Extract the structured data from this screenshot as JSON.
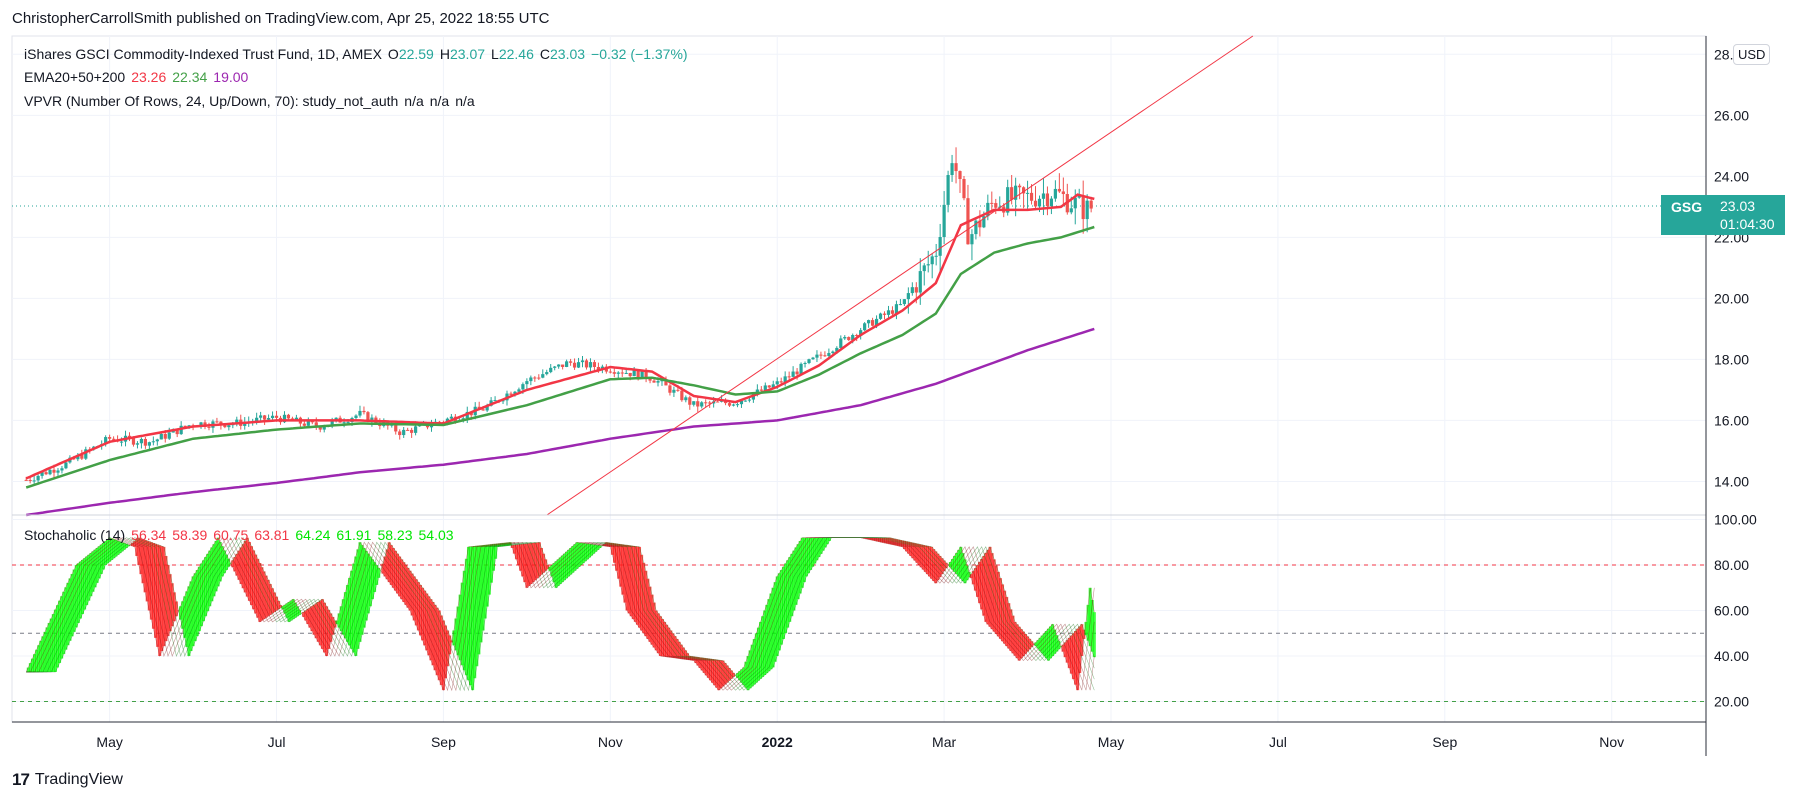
{
  "header": {
    "publisher_line": "ChristopherCarrollSmith published on TradingView.com, Apr 25, 2022 18:55 UTC",
    "instrument": "iShares GSCI Commodity-Indexed Trust Fund, 1D, AMEX",
    "open_label": "O",
    "open": "22.59",
    "high_label": "H",
    "high": "23.07",
    "low_label": "L",
    "low": "22.46",
    "close_label": "C",
    "close": "23.03",
    "change": "−0.32 (−1.37%)"
  },
  "ema_legend": {
    "label": "EMA20+50+200",
    "ema20": "23.26",
    "ema50": "22.34",
    "ema200": "19.00"
  },
  "vpvr_legend": {
    "label": "VPVR (Number Of Rows, 24, Up/Down, 70): study_not_auth",
    "v1": "n/a",
    "v2": "n/a",
    "v3": "n/a"
  },
  "stoch_legend": {
    "label": "Stochaholic (14)",
    "values": [
      "56.34",
      "58.39",
      "60.75",
      "63.81",
      "64.24",
      "61.91",
      "58.23",
      "54.03"
    ],
    "value_colors": [
      "#f23645",
      "#f23645",
      "#f23645",
      "#f23645",
      "#00e600",
      "#00e600",
      "#00e600",
      "#00e600"
    ]
  },
  "price_tag": {
    "symbol": "GSG",
    "price": "23.03",
    "countdown": "01:04:30"
  },
  "currency": "USD",
  "footer": {
    "logo": "17",
    "brand": "TradingView"
  },
  "colors": {
    "up": "#26a69a",
    "down": "#ef5350",
    "ema20": "#f23645",
    "ema50": "#43a047",
    "ema200": "#9c27b0",
    "trend": "#f23645",
    "stoch_up": "#00ff00",
    "stoch_down": "#ff1a1a"
  },
  "chart_data": [
    {
      "type": "candlestick",
      "title": "iShares GSCI Commodity-Indexed Trust Fund, 1D, AMEX",
      "ylim": [
        12.9,
        28.6
      ],
      "y_ticks": [
        "28.00",
        "26.00",
        "24.00",
        "22.00",
        "20.00",
        "18.00",
        "16.00",
        "14.00"
      ],
      "y_tick_values": [
        28,
        26,
        24,
        22,
        20,
        18,
        16,
        14
      ],
      "x_month_labels": [
        "May",
        "Jul",
        "Sep",
        "Nov",
        "2022",
        "Mar",
        "May",
        "Jul",
        "Sep",
        "Nov"
      ],
      "x_month_index": [
        1,
        3,
        5,
        7,
        9,
        11,
        13,
        15,
        17,
        19
      ],
      "x_range_months": [
        -0.17,
        20.13
      ],
      "last_close": 23.03,
      "ohlc_monthly_approx": [
        {
          "t": 0.0,
          "c": 14.05
        },
        {
          "t": 0.5,
          "c": 14.6
        },
        {
          "t": 1.0,
          "c": 15.4
        },
        {
          "t": 1.5,
          "c": 15.3
        },
        {
          "t": 2.0,
          "c": 15.9
        },
        {
          "t": 2.5,
          "c": 15.9
        },
        {
          "t": 3.0,
          "c": 16.1
        },
        {
          "t": 3.5,
          "c": 15.8
        },
        {
          "t": 4.0,
          "c": 16.2
        },
        {
          "t": 4.5,
          "c": 15.6
        },
        {
          "t": 5.0,
          "c": 16.0
        },
        {
          "t": 5.5,
          "c": 16.4
        },
        {
          "t": 6.0,
          "c": 17.3
        },
        {
          "t": 6.5,
          "c": 17.9
        },
        {
          "t": 7.0,
          "c": 17.7
        },
        {
          "t": 7.5,
          "c": 17.4
        },
        {
          "t": 8.0,
          "c": 16.5
        },
        {
          "t": 8.5,
          "c": 16.6
        },
        {
          "t": 9.0,
          "c": 17.2
        },
        {
          "t": 9.5,
          "c": 18.1
        },
        {
          "t": 10.0,
          "c": 19.0
        },
        {
          "t": 10.5,
          "c": 19.8
        },
        {
          "t": 10.9,
          "c": 21.5
        },
        {
          "t": 11.1,
          "c": 24.8
        },
        {
          "t": 11.3,
          "c": 22.0
        },
        {
          "t": 11.6,
          "c": 23.2
        },
        {
          "t": 12.0,
          "c": 23.3
        },
        {
          "t": 12.3,
          "c": 23.5
        },
        {
          "t": 12.7,
          "c": 22.9
        },
        {
          "t": 12.8,
          "c": 23.03
        }
      ],
      "series": [
        {
          "name": "EMA20",
          "values_at_t": [
            [
              0,
              14.1
            ],
            [
              1,
              15.3
            ],
            [
              2,
              15.8
            ],
            [
              3,
              16.0
            ],
            [
              4,
              16.0
            ],
            [
              5,
              15.9
            ],
            [
              6,
              17.0
            ],
            [
              7,
              17.75
            ],
            [
              7.5,
              17.6
            ],
            [
              8,
              16.8
            ],
            [
              8.5,
              16.6
            ],
            [
              9,
              17.1
            ],
            [
              9.5,
              17.8
            ],
            [
              10,
              18.8
            ],
            [
              10.5,
              19.6
            ],
            [
              10.9,
              20.5
            ],
            [
              11.2,
              22.4
            ],
            [
              11.6,
              22.9
            ],
            [
              12.0,
              22.9
            ],
            [
              12.4,
              23.0
            ],
            [
              12.6,
              23.4
            ],
            [
              12.8,
              23.26
            ]
          ]
        },
        {
          "name": "EMA50",
          "values_at_t": [
            [
              0,
              13.8
            ],
            [
              1,
              14.7
            ],
            [
              2,
              15.4
            ],
            [
              3,
              15.7
            ],
            [
              4,
              15.9
            ],
            [
              5,
              15.85
            ],
            [
              6,
              16.5
            ],
            [
              7,
              17.35
            ],
            [
              7.5,
              17.4
            ],
            [
              8,
              17.15
            ],
            [
              8.5,
              16.85
            ],
            [
              9,
              16.95
            ],
            [
              9.5,
              17.5
            ],
            [
              10,
              18.2
            ],
            [
              10.5,
              18.8
            ],
            [
              10.9,
              19.5
            ],
            [
              11.2,
              20.8
            ],
            [
              11.6,
              21.5
            ],
            [
              12.0,
              21.8
            ],
            [
              12.4,
              22.0
            ],
            [
              12.8,
              22.34
            ]
          ]
        },
        {
          "name": "EMA200",
          "values_at_t": [
            [
              0,
              12.9
            ],
            [
              1,
              13.3
            ],
            [
              2,
              13.65
            ],
            [
              3,
              13.95
            ],
            [
              4,
              14.3
            ],
            [
              5,
              14.55
            ],
            [
              6,
              14.9
            ],
            [
              7,
              15.4
            ],
            [
              8,
              15.8
            ],
            [
              9,
              16.0
            ],
            [
              10,
              16.5
            ],
            [
              10.9,
              17.2
            ],
            [
              11.3,
              17.6
            ],
            [
              12,
              18.3
            ],
            [
              12.8,
              19.0
            ]
          ]
        },
        {
          "name": "Trend line",
          "values_at_t": [
            [
              6.24,
              12.9
            ],
            [
              14.7,
              28.6
            ]
          ]
        }
      ]
    },
    {
      "type": "line",
      "title": "Stochaholic (14)",
      "ylim": [
        11,
        102
      ],
      "y_ticks": [
        "100.00",
        "80.00",
        "60.00",
        "40.00",
        "20.00"
      ],
      "y_tick_values": [
        100,
        80,
        60,
        40,
        20
      ],
      "hlines": [
        80,
        50,
        20
      ],
      "series": [
        {
          "name": "Stochastic (fast)",
          "values_at_t": [
            [
              0,
              33
            ],
            [
              0.6,
              80
            ],
            [
              1,
              92
            ],
            [
              1.3,
              88
            ],
            [
              1.6,
              40
            ],
            [
              2.0,
              75
            ],
            [
              2.3,
              92
            ],
            [
              2.8,
              55
            ],
            [
              3.2,
              65
            ],
            [
              3.6,
              40
            ],
            [
              4.0,
              90
            ],
            [
              4.6,
              60
            ],
            [
              5.0,
              25
            ],
            [
              5.3,
              88
            ],
            [
              5.8,
              90
            ],
            [
              6.0,
              70
            ],
            [
              6.6,
              90
            ],
            [
              7.0,
              88
            ],
            [
              7.2,
              60
            ],
            [
              7.6,
              40
            ],
            [
              8.0,
              38
            ],
            [
              8.3,
              25
            ],
            [
              8.6,
              35
            ],
            [
              9.0,
              75
            ],
            [
              9.3,
              92
            ],
            [
              10.0,
              92
            ],
            [
              10.5,
              88
            ],
            [
              10.9,
              72
            ],
            [
              11.2,
              88
            ],
            [
              11.5,
              55
            ],
            [
              11.9,
              38
            ],
            [
              12.3,
              54
            ],
            [
              12.6,
              25
            ],
            [
              12.75,
              70
            ],
            [
              12.82,
              55
            ]
          ]
        }
      ]
    }
  ]
}
